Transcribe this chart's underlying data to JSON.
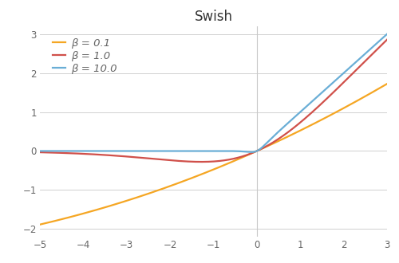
{
  "title": "Swish",
  "xlim": [
    -5,
    3
  ],
  "ylim": [
    -2.2,
    3.2
  ],
  "xticks": [
    -5,
    -4,
    -3,
    -2,
    -1,
    0,
    1,
    2,
    3
  ],
  "yticks": [
    -2,
    -1,
    0,
    1,
    2,
    3
  ],
  "betas": [
    0.1,
    1.0,
    10.0
  ],
  "colors": [
    "#F5A623",
    "#D0504A",
    "#6aaed6"
  ],
  "labels": [
    "β = 0.1",
    "β = 1.0",
    "β = 10.0"
  ],
  "linewidth": 1.6,
  "background_color": "#ffffff",
  "grid_color": "#d0d0d0",
  "vline_color": "#c8c8c8",
  "title_fontsize": 12,
  "legend_fontsize": 9.5,
  "tick_fontsize": 8.5,
  "tick_color": "#666666"
}
